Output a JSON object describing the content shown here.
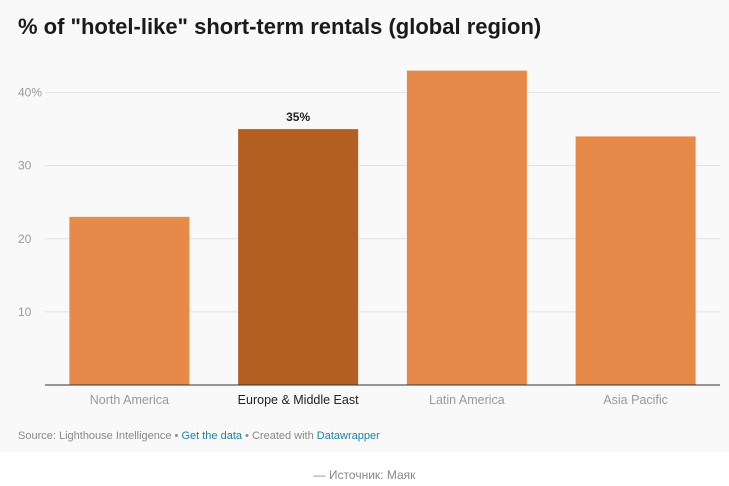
{
  "chart_data": {
    "type": "bar",
    "title": "% of \"hotel-like\" short-term rentals (global region)",
    "categories": [
      "North America",
      "Europe & Middle East",
      "Latin America",
      "Asia Pacific"
    ],
    "values": [
      23,
      35,
      43,
      34
    ],
    "highlight_index": 1,
    "data_labels": [
      "",
      "35%",
      "",
      ""
    ],
    "y_ticks": [
      10,
      20,
      30,
      40
    ],
    "y_tick_labels": [
      "10",
      "20",
      "30",
      "40%"
    ],
    "ylim": [
      0,
      45
    ],
    "xlabel": "",
    "ylabel": "",
    "grid": true,
    "colors": {
      "bar": "#e68a4a",
      "highlight": "#b35f22"
    }
  },
  "footer": {
    "source": "Source: Lighthouse Intelligence",
    "sep1": " • ",
    "get_data": "Get the data",
    "sep2": " • ",
    "created_with": "Created with ",
    "datawrapper": "Datawrapper"
  },
  "credit": "— Источник: Маяк"
}
